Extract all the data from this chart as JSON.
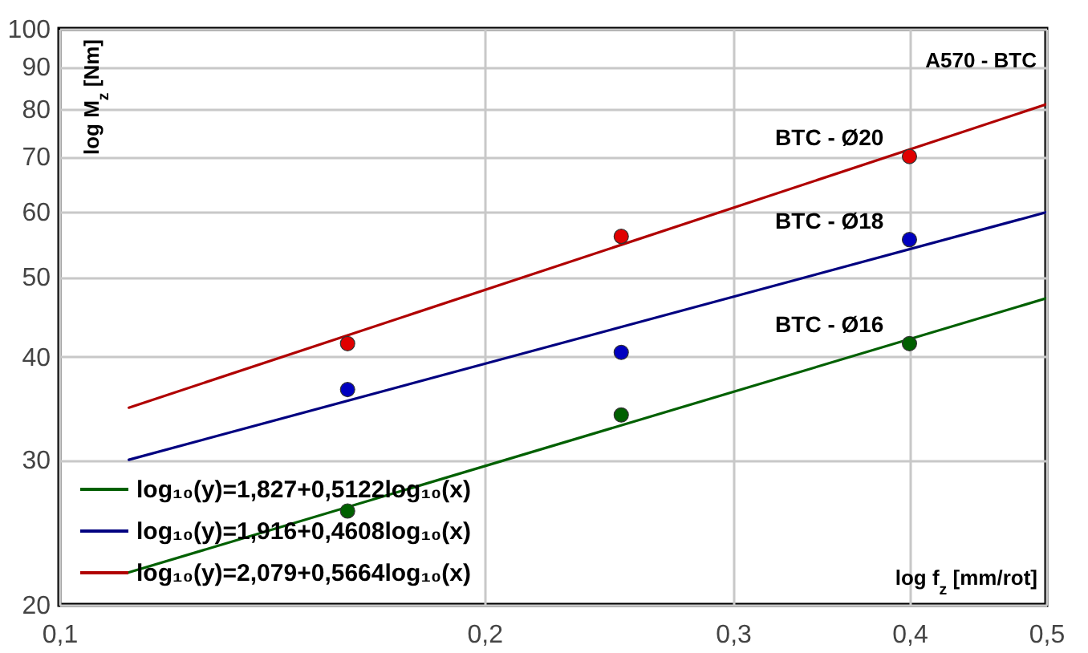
{
  "chart_data": {
    "type": "scatter",
    "xlabel": "log f$_{z}$ [mm/rot]",
    "ylabel": "log M$_{z}$ [Nm]",
    "annotations": [
      "A570 - BTC"
    ],
    "log": "xy",
    "grid": true,
    "legend": "bottom left",
    "marker": "circle",
    "xlim": [
      0.1,
      0.5
    ],
    "ylim": [
      20,
      100
    ],
    "xticks": [
      {
        "value": 0.1,
        "label": "0,1"
      },
      {
        "value": 0.2,
        "label": "0,2"
      },
      {
        "value": 0.3,
        "label": "0,3"
      },
      {
        "value": 0.4,
        "label": "0,4"
      },
      {
        "value": 0.5,
        "label": "0,5"
      }
    ],
    "yticks": [
      20,
      30,
      40,
      50,
      60,
      70,
      80,
      90,
      100
    ],
    "series": [
      {
        "name": "BTC - Ø20",
        "type": "scatter",
        "color": "#e00000",
        "x": [
          0.16,
          0.25,
          0.4
        ],
        "values": [
          41.5,
          56,
          70
        ]
      },
      {
        "name": "BTC - Ø18",
        "type": "scatter",
        "color": "#0000c0",
        "x": [
          0.16,
          0.25,
          0.4
        ],
        "values": [
          36.5,
          40.5,
          55.5
        ]
      },
      {
        "name": "BTC - Ø16",
        "type": "scatter",
        "color": "#006000",
        "x": [
          0.16,
          0.25,
          0.4
        ],
        "values": [
          26,
          34,
          41.5
        ]
      },
      {
        "name": "log₁₀(y)=1,827+0,5122log₁₀(x)",
        "type": "line",
        "marker": "none",
        "color": "#006000",
        "x": [
          0.112,
          0.5
        ],
        "values": [
          21.9,
          47.1
        ]
      },
      {
        "name": "log₁₀(y)=1,916+0,4608log₁₀(x)",
        "type": "line",
        "marker": "none",
        "color": "#000080",
        "x": [
          0.112,
          0.5
        ],
        "values": [
          30,
          59.9
        ]
      },
      {
        "name": "log₁₀(y)=2,079+0,5664log₁₀(x)",
        "type": "line",
        "marker": "none",
        "color": "#b00000",
        "x": [
          0.112,
          0.5
        ],
        "values": [
          34.7,
          81
        ]
      }
    ]
  }
}
